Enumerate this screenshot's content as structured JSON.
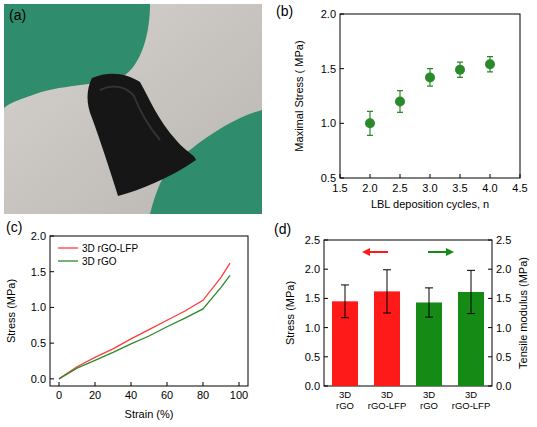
{
  "chart_data": [
    {
      "type": "image",
      "panel": "(a)"
    },
    {
      "type": "scatter",
      "panel": "(b)",
      "x_label": "LBL deposition cycles, n",
      "y_label": "Maximal Stress ( MPa)",
      "xlim": [
        1.5,
        4.5
      ],
      "xticks": [
        1.5,
        {
          "value": 2,
          "label": "2.0"
        },
        2.5,
        {
          "value": 3,
          "label": "3.0"
        },
        3.5,
        {
          "value": 4,
          "label": "4.0"
        },
        4.5
      ],
      "ylim": [
        0.5,
        2
      ],
      "yticks": [
        0.5,
        {
          "value": 1,
          "label": "1.0"
        },
        1.5,
        {
          "value": 2,
          "label": "2.0"
        }
      ],
      "x": [
        2,
        2.5,
        3,
        3.5,
        4
      ],
      "series": [
        {
          "color": "#2a8a2a",
          "marker": "circle",
          "values": [
            1.0,
            1.2,
            1.42,
            1.49,
            1.54
          ],
          "errors": [
            0.11,
            0.1,
            0.08,
            0.07,
            0.07
          ]
        }
      ]
    },
    {
      "type": "line",
      "panel": "(c)",
      "x_label": "Strain (%)",
      "y_label": "Stress (MPa)",
      "xlim": [
        -5,
        105
      ],
      "xticks": [
        0,
        20,
        40,
        60,
        80,
        100
      ],
      "ylim": [
        -0.1,
        2
      ],
      "yticks": [
        {
          "value": 0,
          "label": "0.0"
        },
        0.5,
        {
          "value": 1,
          "label": "1.0"
        },
        1.5,
        {
          "value": 2,
          "label": "2.0"
        }
      ],
      "legend": "upper left",
      "x": [
        0,
        10,
        20,
        30,
        40,
        50,
        60,
        70,
        80,
        90,
        95
      ],
      "series": [
        {
          "name": "3D rGO-LFP",
          "color": "#ff3b3b",
          "values": [
            0,
            0.17,
            0.3,
            0.42,
            0.56,
            0.69,
            0.82,
            0.95,
            1.1,
            1.42,
            1.62
          ]
        },
        {
          "name": "3D rGO",
          "color": "#2a8a2a",
          "values": [
            0,
            0.15,
            0.26,
            0.37,
            0.49,
            0.6,
            0.73,
            0.85,
            0.98,
            1.28,
            1.45
          ]
        }
      ]
    },
    {
      "type": "bar",
      "panel": "(d)",
      "y_label": "Stress (MPa)",
      "y2_label": "Tensile modulus (MPa)",
      "categories": [
        "3D rGO",
        "3D rGO-LFP",
        "3D rGO",
        "3D rGO-LFP"
      ],
      "ylim": [
        0,
        2.5
      ],
      "yticks": [
        {
          "value": 0,
          "label": "0.0"
        },
        0.5,
        {
          "value": 1,
          "label": "1.0"
        },
        1.5,
        {
          "value": 2,
          "label": "2.0"
        },
        2.5
      ],
      "y2lim": [
        0,
        2.5
      ],
      "y2ticks": [
        {
          "value": 0,
          "label": "0.0"
        },
        0.5,
        {
          "value": 1,
          "label": "1.0"
        },
        1.5,
        {
          "value": 2,
          "label": "2.0"
        },
        2.5
      ],
      "series": [
        {
          "color": "#ff1a1a",
          "values": [
            1.45,
            1.62,
            null,
            null
          ],
          "errors": [
            0.28,
            0.37,
            null,
            null
          ]
        },
        {
          "color": "#158a15",
          "axis": "y2",
          "values": [
            null,
            null,
            1.43,
            1.61
          ],
          "errors": [
            null,
            null,
            0.25,
            0.37
          ]
        }
      ]
    }
  ]
}
